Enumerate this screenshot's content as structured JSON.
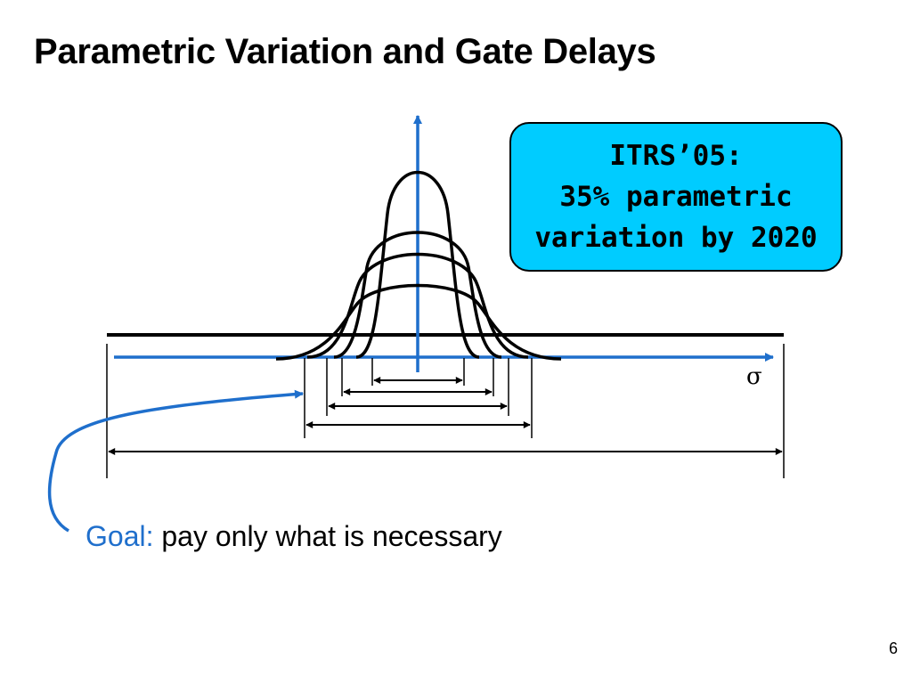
{
  "slide": {
    "title": "Parametric Variation and Gate Delays",
    "page_number": "6"
  },
  "callout": {
    "lines": [
      "ITRS’05:",
      "35% parametric",
      "variation by 2020"
    ],
    "fill_color": "#00ccff"
  },
  "axis": {
    "x_label": "σ",
    "axis_color": "#1f6fcc"
  },
  "goal": {
    "label": "Goal:",
    "text": " pay only what is necessary",
    "label_color": "#1f6fcc"
  },
  "icons": [
    "up-arrow-icon",
    "right-arrow-icon",
    "curved-arrow-icon",
    "double-headed-arrow-icon"
  ]
}
